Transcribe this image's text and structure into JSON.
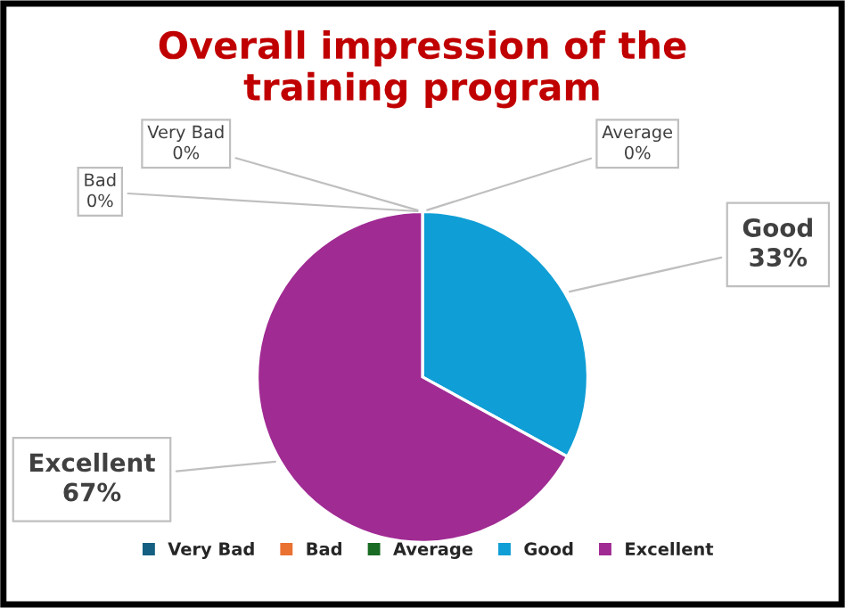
{
  "chart_data": {
    "type": "pie",
    "title": "Overall impression of the\ntraining program",
    "categories": [
      "Very Bad",
      "Bad",
      "Average",
      "Good",
      "Excellent"
    ],
    "values": [
      0,
      0,
      0,
      33,
      67
    ],
    "colors": [
      "#156082",
      "#e97132",
      "#196b24",
      "#0f9ed5",
      "#a02b93"
    ],
    "value_labels": [
      "0%",
      "0%",
      "0%",
      "33%",
      "67%"
    ],
    "legend": "bottom"
  }
}
